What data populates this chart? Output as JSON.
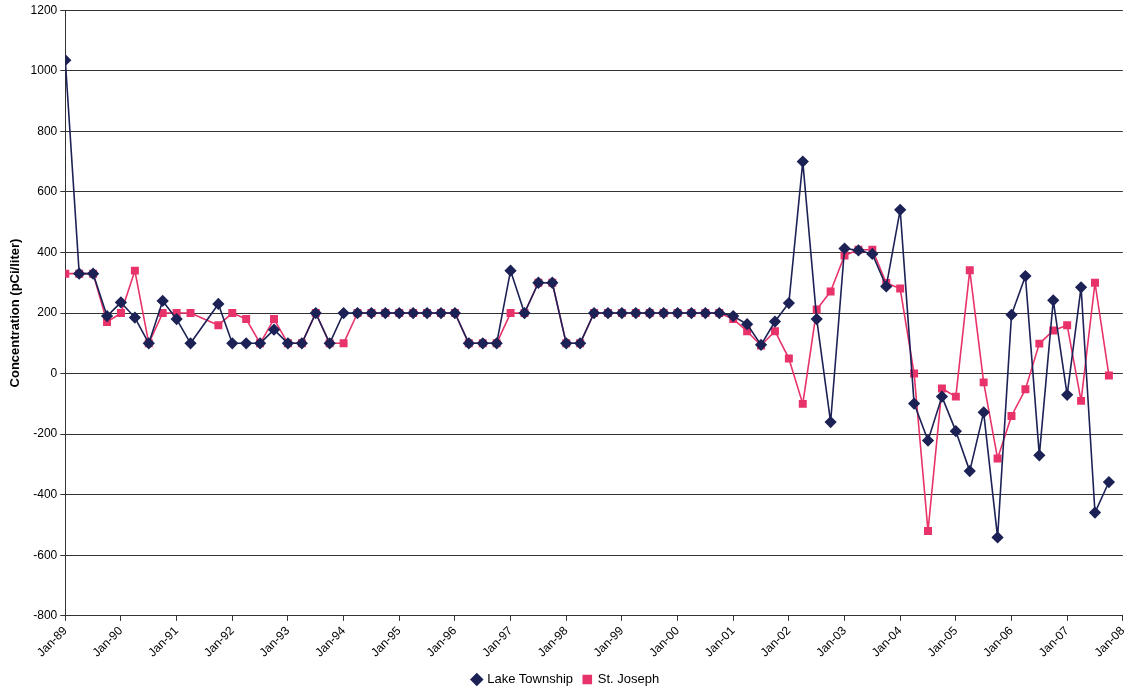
{
  "chart_data": {
    "type": "line",
    "ylabel": "Concentration (pCi/liter)",
    "x": [
      "1989-01",
      "1989-04",
      "1989-07",
      "1989-10",
      "1990-01",
      "1990-04",
      "1990-07",
      "1990-10",
      "1991-01",
      "1991-04",
      "1991-07",
      "1991-10",
      "1992-01",
      "1992-04",
      "1992-07",
      "1992-10",
      "1993-01",
      "1993-04",
      "1993-07",
      "1993-10",
      "1994-01",
      "1994-04",
      "1994-07",
      "1994-10",
      "1995-01",
      "1995-04",
      "1995-07",
      "1995-10",
      "1996-01",
      "1996-04",
      "1996-07",
      "1996-10",
      "1997-01",
      "1997-04",
      "1997-07",
      "1997-10",
      "1998-01",
      "1998-04",
      "1998-07",
      "1998-10",
      "1999-01",
      "1999-04",
      "1999-07",
      "1999-10",
      "2000-01",
      "2000-04",
      "2000-07",
      "2000-10",
      "2001-01",
      "2001-04",
      "2001-07",
      "2001-10",
      "2002-01",
      "2002-04",
      "2002-07",
      "2002-10",
      "2003-01",
      "2003-04",
      "2003-07",
      "2003-10",
      "2004-01",
      "2004-04",
      "2004-07",
      "2004-10",
      "2005-01",
      "2005-04",
      "2005-07",
      "2005-10",
      "2006-01",
      "2006-04",
      "2006-07",
      "2006-10",
      "2007-01",
      "2007-04",
      "2007-07",
      "2007-10"
    ],
    "series": [
      {
        "name": "Lake Township",
        "color": "#1c2255",
        "marker": "diamond",
        "values": [
          1035,
          330,
          330,
          190,
          235,
          185,
          100,
          240,
          180,
          100,
          null,
          230,
          100,
          100,
          100,
          145,
          100,
          100,
          200,
          100,
          200,
          200,
          200,
          200,
          200,
          200,
          200,
          200,
          200,
          100,
          100,
          100,
          340,
          200,
          300,
          300,
          100,
          100,
          200,
          200,
          200,
          200,
          200,
          200,
          200,
          200,
          200,
          200,
          190,
          163,
          95,
          172,
          233,
          700,
          180,
          -160,
          413,
          407,
          395,
          288,
          541,
          -99,
          -221,
          -76,
          -190,
          -322,
          -128,
          -541,
          194,
          322,
          -270,
          242,
          -70,
          285,
          -459,
          -358
        ]
      },
      {
        "name": "St. Joseph",
        "color": "#e8336a",
        "marker": "square",
        "values": [
          330,
          330,
          330,
          170,
          200,
          340,
          100,
          200,
          200,
          200,
          null,
          160,
          200,
          180,
          100,
          180,
          100,
          100,
          200,
          100,
          100,
          200,
          200,
          200,
          200,
          200,
          200,
          200,
          200,
          100,
          100,
          100,
          200,
          200,
          300,
          300,
          100,
          100,
          200,
          200,
          200,
          200,
          200,
          200,
          200,
          200,
          200,
          200,
          180,
          140,
          93,
          140,
          50,
          -100,
          212,
          271,
          390,
          409,
          409,
          299,
          281,
          0,
          -520,
          -49,
          -76,
          341,
          -29,
          -280,
          -140,
          -52,
          99,
          142,
          160,
          -90,
          300,
          -6
        ]
      }
    ],
    "xlim": [
      "1989-01",
      "2008-01"
    ],
    "xticks": [
      {
        "value": "1989-01",
        "label": "Jan-89"
      },
      {
        "value": "1990-01",
        "label": "Jan-90"
      },
      {
        "value": "1991-01",
        "label": "Jan-91"
      },
      {
        "value": "1992-01",
        "label": "Jan-92"
      },
      {
        "value": "1993-01",
        "label": "Jan-93"
      },
      {
        "value": "1994-01",
        "label": "Jan-94"
      },
      {
        "value": "1995-01",
        "label": "Jan-95"
      },
      {
        "value": "1996-01",
        "label": "Jan-96"
      },
      {
        "value": "1997-01",
        "label": "Jan-97"
      },
      {
        "value": "1998-01",
        "label": "Jan-98"
      },
      {
        "value": "1999-01",
        "label": "Jan-99"
      },
      {
        "value": "2000-01",
        "label": "Jan-00"
      },
      {
        "value": "2001-01",
        "label": "Jan-01"
      },
      {
        "value": "2002-01",
        "label": "Jan-02"
      },
      {
        "value": "2003-01",
        "label": "Jan-03"
      },
      {
        "value": "2004-01",
        "label": "Jan-04"
      },
      {
        "value": "2005-01",
        "label": "Jan-05"
      },
      {
        "value": "2006-01",
        "label": "Jan-06"
      },
      {
        "value": "2007-01",
        "label": "Jan-07"
      },
      {
        "value": "2008-01",
        "label": "Jan-08"
      }
    ],
    "ylim": [
      -800,
      1200
    ],
    "yticks": [
      -800,
      -600,
      -400,
      -200,
      0,
      200,
      400,
      600,
      800,
      1000,
      1200
    ],
    "grid": "y",
    "legend": "bottom",
    "line_style": "solid"
  }
}
